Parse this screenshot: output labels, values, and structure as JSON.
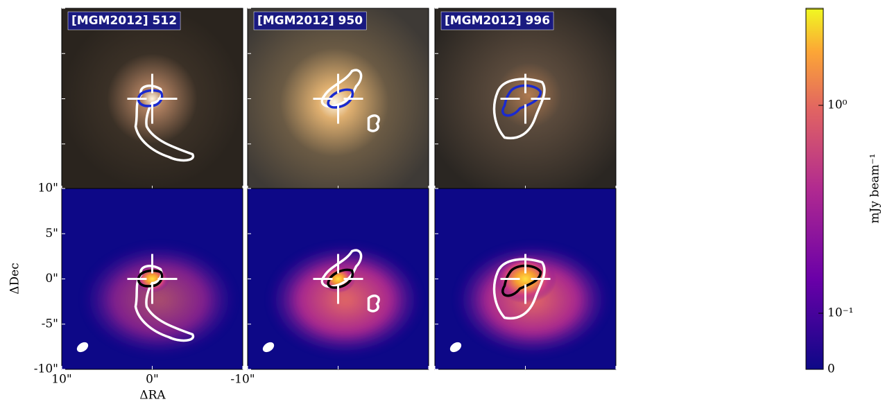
{
  "panels": [
    {
      "label": "[MGM2012] 512"
    },
    {
      "label": "[MGM2012] 950"
    },
    {
      "label": "[MGM2012] 996"
    }
  ],
  "axes": {
    "xlabel": "ΔRA",
    "ylabel": "ΔDec",
    "xlim": [
      10,
      -10
    ],
    "ylim": [
      -10,
      10
    ],
    "xticks": [
      {
        "value": 10,
        "label": "10\""
      },
      {
        "value": 0,
        "label": "0\""
      },
      {
        "value": -10,
        "label": "-10\""
      }
    ],
    "yticks": [
      {
        "value": 10,
        "label": "10\""
      },
      {
        "value": 5,
        "label": "5\""
      },
      {
        "value": 0,
        "label": "0\""
      },
      {
        "value": -5,
        "label": "-5\""
      },
      {
        "value": -10,
        "label": "-10\""
      }
    ]
  },
  "colorbar": {
    "label": "mJy beam⁻¹",
    "clim": [
      0,
      2.9
    ],
    "linthresh": 0.1,
    "ticks": [
      {
        "value": 0,
        "label": "0"
      },
      {
        "value": 0.1,
        "label": "10⁻¹"
      },
      {
        "value": 1,
        "label": "10⁰"
      }
    ]
  }
}
